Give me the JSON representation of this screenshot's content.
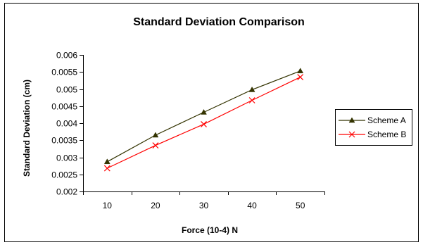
{
  "chart_data": {
    "type": "line",
    "title": "Standard Deviation Comparison",
    "xlabel": "Force (10-4) N",
    "ylabel": "Standard Deviation (cm)",
    "categories": [
      "10",
      "20",
      "30",
      "40",
      "50"
    ],
    "yticks": [
      "0.002",
      "0.0025",
      "0.003",
      "0.0035",
      "0.004",
      "0.0045",
      "0.005",
      "0.0055",
      "0.006"
    ],
    "ylim": [
      0.002,
      0.006
    ],
    "grid": false,
    "legend_position": "right",
    "series": [
      {
        "name": "Scheme A",
        "values": [
          0.00287,
          0.00365,
          0.00432,
          0.00498,
          0.00553
        ],
        "color": "#333300",
        "marker": "triangle"
      },
      {
        "name": "Scheme B",
        "values": [
          0.00268,
          0.00335,
          0.00397,
          0.00467,
          0.00535
        ],
        "color": "#ff0000",
        "marker": "x"
      }
    ]
  }
}
